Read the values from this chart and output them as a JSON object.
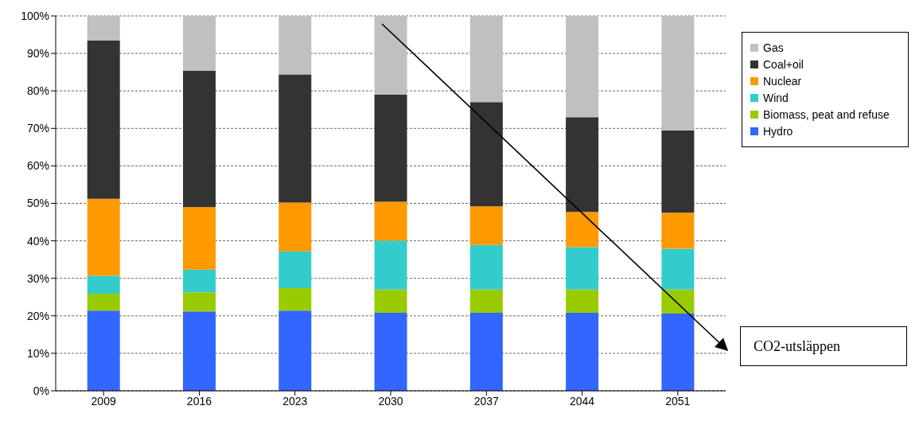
{
  "chart_data": {
    "type": "bar",
    "stacked": true,
    "categories": [
      "2009",
      "2016",
      "2023",
      "2030",
      "2037",
      "2044",
      "2051"
    ],
    "series": [
      {
        "name": "Hydro",
        "color": "#3366ff",
        "values": [
          21.4,
          21.2,
          21.4,
          20.8,
          20.8,
          20.8,
          20.6
        ]
      },
      {
        "name": "Biomass, peat and refuse",
        "color": "#99cc00",
        "values": [
          4.5,
          5.1,
          6.0,
          6.2,
          6.2,
          6.2,
          6.4
        ]
      },
      {
        "name": "Wind",
        "color": "#33cccc",
        "values": [
          4.8,
          6.0,
          9.8,
          13.1,
          11.9,
          11.3,
          10.9
        ]
      },
      {
        "name": "Nuclear",
        "color": "#ff9900",
        "values": [
          20.5,
          16.7,
          13.0,
          10.3,
          10.3,
          9.4,
          9.6
        ]
      },
      {
        "name": "Coal+oil",
        "color": "#333333",
        "values": [
          42.2,
          36.4,
          34.2,
          28.6,
          27.8,
          25.3,
          22.0
        ]
      },
      {
        "name": "Gas",
        "color": "#c0c0c0",
        "values": [
          6.6,
          14.6,
          15.6,
          21.0,
          23.0,
          27.0,
          30.5
        ]
      }
    ],
    "ylim": [
      0,
      100
    ],
    "yticks": [
      {
        "value": 0,
        "label": "0%"
      },
      {
        "value": 10,
        "label": "10%"
      },
      {
        "value": 20,
        "label": "20%"
      },
      {
        "value": 30,
        "label": "30%"
      },
      {
        "value": 40,
        "label": "40%"
      },
      {
        "value": 50,
        "label": "50%"
      },
      {
        "value": 60,
        "label": "60%"
      },
      {
        "value": 70,
        "label": "70%"
      },
      {
        "value": 80,
        "label": "80%"
      },
      {
        "value": 90,
        "label": "90%"
      },
      {
        "value": 100,
        "label": "100%"
      }
    ],
    "grid": "y",
    "legend": "right",
    "annotations": [
      "CO2-utsläppen"
    ]
  }
}
